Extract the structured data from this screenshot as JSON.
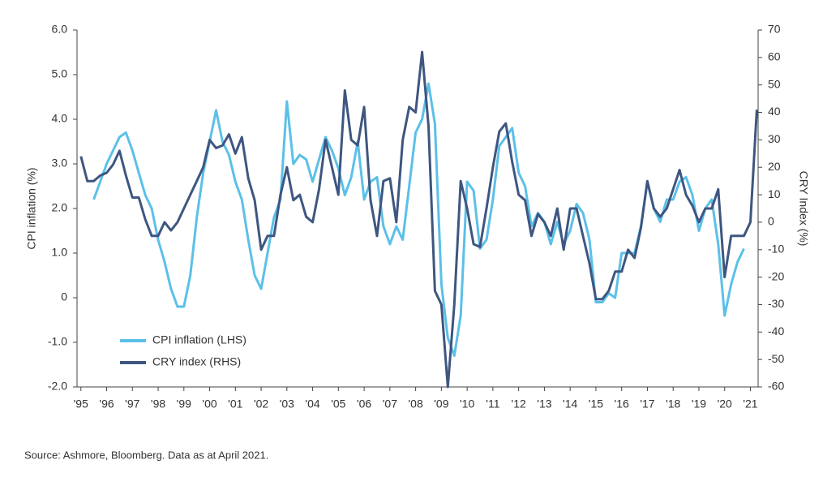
{
  "chart_data": {
    "type": "line",
    "y_label": "CPI inflation (%)",
    "y2_label": "CRY Index (%)",
    "source": "Source: Ashmore, Bloomberg. Data as at April 2021.",
    "x": [
      1995,
      1995.25,
      1995.5,
      1995.75,
      1996,
      1996.25,
      1996.5,
      1996.75,
      1997,
      1997.25,
      1997.5,
      1997.75,
      1998,
      1998.25,
      1998.5,
      1998.75,
      1999,
      1999.25,
      1999.5,
      1999.75,
      2000,
      2000.25,
      2000.5,
      2000.75,
      2001,
      2001.25,
      2001.5,
      2001.75,
      2002,
      2002.25,
      2002.5,
      2002.75,
      2003,
      2003.25,
      2003.5,
      2003.75,
      2004,
      2004.25,
      2004.5,
      2004.75,
      2005,
      2005.25,
      2005.5,
      2005.75,
      2006,
      2006.25,
      2006.5,
      2006.75,
      2007,
      2007.25,
      2007.5,
      2007.75,
      2008,
      2008.25,
      2008.5,
      2008.75,
      2009,
      2009.25,
      2009.5,
      2009.75,
      2010,
      2010.25,
      2010.5,
      2010.75,
      2011,
      2011.25,
      2011.5,
      2011.75,
      2012,
      2012.25,
      2012.5,
      2012.75,
      2013,
      2013.25,
      2013.5,
      2013.75,
      2014,
      2014.25,
      2014.5,
      2014.75,
      2015,
      2015.25,
      2015.5,
      2015.75,
      2016,
      2016.25,
      2016.5,
      2016.75,
      2017,
      2017.25,
      2017.5,
      2017.75,
      2018,
      2018.25,
      2018.5,
      2018.75,
      2019,
      2019.25,
      2019.5,
      2019.75,
      2020,
      2020.25,
      2020.5,
      2020.75,
      2021,
      2021.25
    ],
    "series": [
      {
        "name": "CPI inflation (LHS)",
        "color": "#5bc0e8",
        "axis": "y",
        "values": [
          null,
          null,
          2.2,
          2.6,
          3.0,
          3.3,
          3.6,
          3.7,
          3.3,
          2.8,
          2.3,
          2.0,
          1.3,
          0.8,
          0.2,
          -0.2,
          -0.2,
          0.5,
          1.8,
          2.8,
          3.5,
          4.2,
          3.5,
          3.2,
          2.6,
          2.2,
          1.3,
          0.5,
          0.2,
          1.0,
          1.8,
          2.2,
          4.4,
          3.0,
          3.2,
          3.1,
          2.6,
          3.1,
          3.6,
          3.3,
          2.9,
          2.3,
          2.7,
          3.5,
          2.2,
          2.6,
          2.7,
          1.6,
          1.2,
          1.6,
          1.3,
          2.5,
          3.7,
          4.0,
          4.8,
          3.9,
          0.3,
          -0.9,
          -1.3,
          -0.4,
          2.6,
          2.4,
          1.1,
          1.3,
          2.2,
          3.4,
          3.6,
          3.8,
          2.8,
          2.5,
          1.6,
          1.9,
          1.7,
          1.2,
          1.7,
          1.2,
          1.5,
          2.1,
          1.9,
          1.3,
          -0.1,
          -0.1,
          0.1,
          0.0,
          1.0,
          1.0,
          1.0,
          1.6,
          2.6,
          2.0,
          1.7,
          2.2,
          2.2,
          2.6,
          2.7,
          2.3,
          1.5,
          2.0,
          2.2,
          1.2,
          -0.4,
          0.3,
          0.8,
          1.1,
          null,
          null
        ]
      },
      {
        "name": "CRY index (RHS)",
        "color": "#3e5680",
        "axis": "y2",
        "values": [
          24,
          15,
          15,
          17,
          18,
          21,
          26,
          17,
          9,
          9,
          1,
          -5,
          -5,
          0,
          -3,
          0,
          5,
          10,
          15,
          20,
          30,
          27,
          28,
          32,
          25,
          31,
          16,
          8,
          -10,
          -5,
          -5,
          10,
          20,
          8,
          10,
          2,
          0,
          12,
          30,
          20,
          10,
          48,
          30,
          28,
          42,
          8,
          -5,
          15,
          16,
          0,
          30,
          42,
          40,
          62,
          35,
          -25,
          -30,
          -60,
          -30,
          15,
          5,
          -8,
          -9,
          5,
          20,
          33,
          36,
          22,
          10,
          8,
          -5,
          3,
          0,
          -5,
          5,
          -10,
          5,
          5,
          -5,
          -15,
          -28,
          -28,
          -25,
          -18,
          -18,
          -10,
          -13,
          -2,
          15,
          5,
          2,
          5,
          12,
          19,
          10,
          6,
          0,
          5,
          5,
          12,
          -20,
          -5,
          -5,
          -5,
          0,
          41
        ]
      }
    ],
    "xlim": [
      1994.85,
      2021.3
    ],
    "xticks": [
      {
        "value": 1995,
        "label": "'95"
      },
      {
        "value": 1996,
        "label": "'96"
      },
      {
        "value": 1997,
        "label": "'97"
      },
      {
        "value": 1998,
        "label": "'98"
      },
      {
        "value": 1999,
        "label": "'99"
      },
      {
        "value": 2000,
        "label": "'00"
      },
      {
        "value": 2001,
        "label": "'01"
      },
      {
        "value": 2002,
        "label": "'02"
      },
      {
        "value": 2003,
        "label": "'03"
      },
      {
        "value": 2004,
        "label": "'04"
      },
      {
        "value": 2005,
        "label": "'05"
      },
      {
        "value": 2006,
        "label": "'06"
      },
      {
        "value": 2007,
        "label": "'07"
      },
      {
        "value": 2008,
        "label": "'08"
      },
      {
        "value": 2009,
        "label": "'09"
      },
      {
        "value": 2010,
        "label": "'10"
      },
      {
        "value": 2011,
        "label": "'11"
      },
      {
        "value": 2012,
        "label": "'12"
      },
      {
        "value": 2013,
        "label": "'13"
      },
      {
        "value": 2014,
        "label": "'14"
      },
      {
        "value": 2015,
        "label": "'15"
      },
      {
        "value": 2016,
        "label": "'16"
      },
      {
        "value": 2017,
        "label": "'17"
      },
      {
        "value": 2018,
        "label": "'18"
      },
      {
        "value": 2019,
        "label": "'19"
      },
      {
        "value": 2020,
        "label": "'20"
      },
      {
        "value": 2021,
        "label": "'21"
      }
    ],
    "ylim": [
      -2,
      6
    ],
    "yticks": [
      {
        "value": -2,
        "label": "-2.0"
      },
      {
        "value": -1,
        "label": "-1.0"
      },
      0,
      {
        "value": 1,
        "label": "1.0"
      },
      {
        "value": 2,
        "label": "2.0"
      },
      {
        "value": 3,
        "label": "3.0"
      },
      {
        "value": 4,
        "label": "4.0"
      },
      {
        "value": 5,
        "label": "5.0"
      },
      {
        "value": 6,
        "label": "6.0"
      }
    ],
    "y2lim": [
      -60,
      70
    ],
    "y2ticks": [
      -60,
      -50,
      -40,
      -30,
      -20,
      -10,
      0,
      10,
      20,
      30,
      40,
      50,
      60,
      70
    ],
    "legend": "lower left"
  }
}
